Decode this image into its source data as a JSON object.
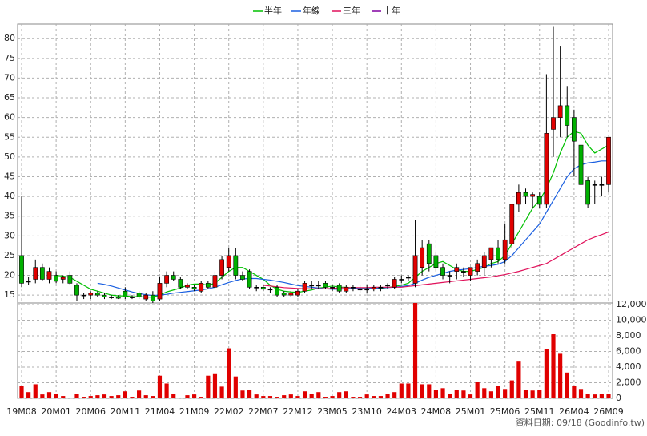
{
  "chart_data": {
    "type": "candlestick",
    "categories": [
      "19M08",
      null,
      null,
      null,
      null,
      "20M01",
      null,
      null,
      null,
      null,
      "20M06",
      null,
      null,
      null,
      null,
      "20M11",
      null,
      null,
      null,
      null,
      "21M04",
      null,
      null,
      null,
      null,
      "21M09",
      null,
      null,
      null,
      null,
      "22M02",
      null,
      null,
      null,
      null,
      "22M07",
      null,
      null,
      null,
      null,
      "22M12",
      null,
      null,
      null,
      null,
      "23M05",
      null,
      null,
      null,
      null,
      "23M10",
      null,
      null,
      null,
      null,
      "24M03",
      null,
      null,
      null,
      null,
      "24M08",
      null,
      null,
      null,
      null,
      "25M01",
      null,
      null,
      null,
      null,
      "25M06",
      null,
      null,
      null,
      null,
      "25M11",
      null,
      null,
      null,
      null,
      "26M04",
      null,
      null,
      null,
      null,
      "26M09"
    ],
    "open": [
      25,
      18.5,
      19,
      22,
      19,
      20,
      19,
      20,
      17.5,
      15,
      15,
      15.5,
      15,
      14.5,
      14.5,
      16,
      14.5,
      15.5,
      14,
      15,
      14,
      18,
      20,
      19,
      17,
      17,
      16,
      18,
      17,
      20,
      22,
      25,
      20,
      21,
      17,
      17,
      16.5,
      17,
      15.5,
      15,
      15,
      16,
      17.5,
      17.5,
      18,
      17,
      17.5,
      16,
      17,
      16.5,
      16.5,
      16.5,
      17,
      17.5,
      17,
      19,
      19.5,
      18,
      22,
      28,
      25,
      22,
      20,
      21,
      21,
      20,
      21,
      22,
      24,
      27,
      24,
      28,
      38,
      41,
      40,
      40,
      38,
      57,
      60,
      63,
      60,
      53,
      44,
      43,
      43,
      43
    ],
    "high": [
      40,
      19.5,
      24,
      23,
      22,
      21,
      20,
      21,
      18,
      15.5,
      16,
      16,
      15.5,
      15,
      15,
      17,
      15,
      16,
      15.5,
      16,
      19.5,
      21,
      21,
      19.5,
      18,
      17.5,
      18.5,
      18.5,
      21,
      25,
      27,
      27,
      21,
      21.5,
      17.5,
      17.5,
      17,
      17.5,
      16,
      16,
      16.5,
      18.5,
      18.5,
      18.5,
      18.5,
      17.5,
      18,
      17.5,
      17.5,
      17.5,
      17.5,
      17.5,
      17.5,
      18,
      19.5,
      20,
      20,
      34,
      29,
      29,
      26,
      23,
      21,
      23,
      22,
      22,
      24,
      26,
      27,
      29,
      33,
      38,
      43,
      42,
      41,
      41,
      71,
      83,
      78,
      68,
      62,
      57,
      45,
      44,
      45,
      55
    ],
    "low": [
      17,
      17.5,
      18,
      18.5,
      18,
      18,
      18,
      17.5,
      13.5,
      14,
      14,
      14.5,
      14,
      14,
      14,
      14,
      14,
      14,
      13.5,
      13,
      13.5,
      17,
      18.5,
      16.5,
      16.5,
      16,
      15.5,
      16.5,
      16.5,
      19,
      21,
      19,
      18.5,
      16.5,
      16,
      16,
      15.5,
      14.5,
      14.5,
      14.5,
      14.5,
      15.5,
      16.5,
      16.5,
      16.5,
      16,
      15.5,
      15.5,
      16,
      15.5,
      15.5,
      16,
      16,
      16.5,
      16.5,
      18,
      18.5,
      17,
      20,
      21,
      21,
      19,
      18,
      19,
      19.5,
      18.5,
      20,
      20,
      22,
      23,
      23,
      27,
      36,
      38,
      37,
      37,
      37,
      50,
      55,
      55,
      45,
      40,
      37,
      38,
      40,
      41
    ],
    "close": [
      18,
      18.5,
      22,
      19,
      21,
      18.5,
      19.5,
      18,
      15,
      15,
      15.5,
      15,
      14.5,
      14.5,
      14.2,
      14.5,
      14.5,
      14.5,
      15,
      13.5,
      18,
      20,
      19,
      17,
      17.5,
      16.5,
      18,
      17,
      20,
      24,
      25,
      20,
      19,
      17,
      17,
      16.5,
      16.5,
      15,
      15,
      15.5,
      16,
      18,
      17.5,
      17.5,
      17,
      17,
      16,
      17,
      17,
      16.5,
      16.5,
      17,
      17,
      17.5,
      19,
      19,
      19.5,
      25,
      27,
      23,
      22,
      20,
      20,
      22,
      21,
      22,
      23,
      25,
      27,
      24,
      29,
      38,
      41,
      40,
      40.5,
      38,
      56,
      60,
      63,
      58,
      54,
      43,
      38,
      43,
      43,
      55
    ],
    "up_color": "#e00000",
    "down_color": "#00b000",
    "series": [
      {
        "name": "半年",
        "color": "#00c000",
        "values": [
          null,
          null,
          null,
          null,
          null,
          20,
          19.8,
          19.5,
          18.5,
          17.5,
          16.5,
          16,
          15.5,
          15,
          14.8,
          14.8,
          14.6,
          14.6,
          14.5,
          14.5,
          15,
          15.8,
          16.3,
          16.8,
          17.5,
          17.8,
          17.8,
          17.5,
          18,
          19.5,
          21,
          22,
          22,
          21,
          20,
          19,
          17.5,
          16.5,
          16,
          15.8,
          15.7,
          16,
          16.3,
          16.8,
          17,
          17.3,
          17,
          17,
          16.8,
          16.7,
          16.6,
          16.6,
          16.7,
          16.9,
          17.2,
          17.5,
          18,
          19.5,
          21,
          22,
          23,
          23.5,
          22.5,
          21.5,
          21,
          21,
          21.5,
          22,
          23,
          23.5,
          25,
          28,
          31,
          34,
          37,
          39,
          42,
          46,
          51,
          55,
          56.5,
          56,
          53,
          51,
          52,
          53
        ]
      },
      {
        "name": "年線",
        "color": "#1a5fe0",
        "values": [
          null,
          null,
          null,
          null,
          null,
          null,
          null,
          null,
          null,
          null,
          null,
          18,
          17.7,
          17.3,
          16.8,
          16.3,
          15.8,
          15.4,
          15.1,
          14.9,
          15,
          15.2,
          15.5,
          15.7,
          15.9,
          16.1,
          16.3,
          16.6,
          17,
          17.6,
          18.2,
          18.7,
          19.1,
          19.2,
          19.2,
          19,
          18.8,
          18.5,
          18.2,
          17.8,
          17.4,
          17.2,
          17,
          16.8,
          16.6,
          16.5,
          16.5,
          16.6,
          16.7,
          16.8,
          16.8,
          16.8,
          16.8,
          16.9,
          17,
          17.2,
          17.4,
          18,
          18.8,
          19.5,
          20,
          20.5,
          21,
          21.3,
          21.5,
          21.7,
          22,
          22.3,
          22.5,
          22.8,
          23.5,
          25,
          27,
          29,
          31,
          33,
          36,
          39,
          42,
          45,
          47,
          48,
          48.5,
          48.7,
          49,
          49
        ]
      },
      {
        "name": "三年",
        "color": "#e0105a",
        "values": [
          null,
          null,
          null,
          null,
          null,
          null,
          null,
          null,
          null,
          null,
          null,
          null,
          null,
          null,
          null,
          null,
          null,
          null,
          null,
          null,
          null,
          null,
          null,
          null,
          null,
          null,
          null,
          null,
          null,
          null,
          null,
          null,
          null,
          null,
          null,
          17.5,
          17.3,
          17.1,
          16.9,
          16.8,
          16.7,
          16.6,
          16.6,
          16.6,
          16.6,
          16.7,
          16.8,
          16.9,
          16.9,
          16.9,
          16.9,
          17,
          17,
          17,
          17,
          17,
          17.2,
          17.4,
          17.6,
          17.8,
          18,
          18.2,
          18.4,
          18.6,
          18.8,
          19,
          19.2,
          19.4,
          19.6,
          19.9,
          20.2,
          20.6,
          21,
          21.5,
          22,
          22.5,
          23,
          24,
          25,
          26,
          27,
          28,
          29,
          29.7,
          30.3,
          31
        ]
      },
      {
        "name": "十年",
        "color": "#8000a0",
        "values": [
          null,
          null,
          null,
          null,
          null,
          null,
          null,
          null,
          null,
          null,
          null,
          null,
          null,
          null,
          null,
          null,
          null,
          null,
          null,
          null,
          null,
          null,
          null,
          null,
          null,
          null,
          null,
          null,
          null,
          null,
          null,
          null,
          null,
          null,
          null,
          null,
          null,
          null,
          null,
          null,
          null,
          null,
          null,
          null,
          null,
          null,
          null,
          null,
          null,
          null,
          null,
          null,
          null,
          null,
          null,
          null,
          null,
          null,
          null,
          null,
          null,
          null,
          null,
          null,
          null,
          null,
          null,
          null,
          null,
          null,
          null,
          null,
          null,
          null,
          null,
          null,
          null,
          null,
          null,
          null,
          null,
          null,
          null,
          null,
          null,
          null
        ]
      }
    ],
    "volume": {
      "color": "#e00000",
      "axis": "y2",
      "values": [
        1600,
        800,
        1800,
        500,
        800,
        600,
        300,
        100,
        600,
        200,
        300,
        400,
        500,
        300,
        400,
        900,
        200,
        1000,
        400,
        300,
        2900,
        1900,
        600,
        100,
        400,
        500,
        200,
        2900,
        3100,
        1500,
        6400,
        2800,
        1000,
        1100,
        500,
        300,
        300,
        200,
        400,
        500,
        300,
        900,
        600,
        800,
        200,
        300,
        800,
        900,
        200,
        200,
        500,
        300,
        300,
        600,
        800,
        1900,
        1900,
        12200,
        1800,
        1800,
        1100,
        1300,
        600,
        1100,
        1000,
        500,
        2100,
        1300,
        900,
        1600,
        1200,
        2300,
        4700,
        1100,
        1000,
        1100,
        6300,
        8200,
        5700,
        3300,
        1600,
        1200,
        600,
        500,
        600,
        600
      ]
    },
    "ylim": [
      13,
      83.7
    ],
    "yticks": [
      15,
      20,
      25,
      30,
      35,
      40,
      45,
      50,
      55,
      60,
      65,
      70,
      75,
      80
    ],
    "y2lim": [
      0,
      12200
    ],
    "y2ticks": [
      0,
      {
        "value": 2000,
        "label": "2,000"
      },
      {
        "value": 4000,
        "label": "4,000"
      },
      {
        "value": 6000,
        "label": "6,000"
      },
      {
        "value": 8000,
        "label": "8,000"
      },
      {
        "value": 10000,
        "label": "10,000"
      },
      {
        "value": 12000,
        "label": "12,000"
      }
    ],
    "grid": true,
    "footer": "資料日期: 09/18  (Goodinfo.tw)"
  }
}
